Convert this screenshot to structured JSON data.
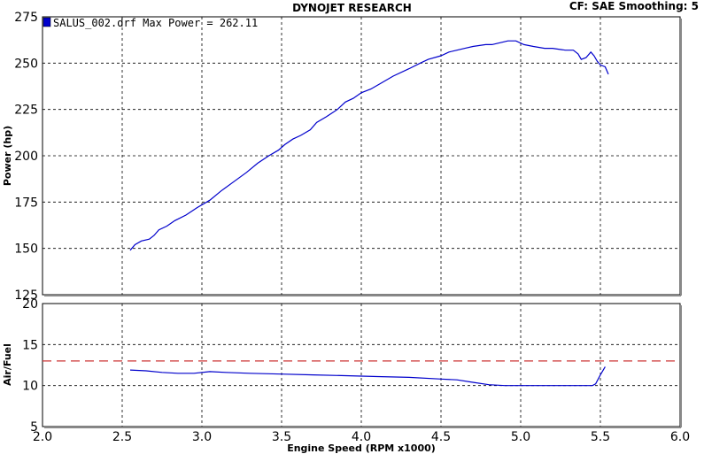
{
  "header": {
    "title": "DYNOJET RESEARCH",
    "cf_label": "CF: SAE  Smoothing: 5"
  },
  "colors": {
    "curve": "#0000cc",
    "target_line": "#cc3333",
    "grid": "#000000"
  },
  "chart_data": [
    {
      "type": "line",
      "title": "",
      "legend_text": "SALUS_002.drf Max Power = 262.11",
      "legend_position": "top-left",
      "xlabel": "",
      "ylabel": "Power (hp)",
      "xlim": [
        2.0,
        6.0
      ],
      "ylim": [
        125,
        275
      ],
      "yticks": [
        125,
        150,
        175,
        200,
        225,
        250,
        275
      ],
      "grid": true,
      "series": [
        {
          "x": [
            2.55,
            2.58,
            2.62,
            2.67,
            2.7,
            2.73,
            2.78,
            2.83,
            2.9,
            2.97,
            3.05,
            3.12,
            3.2,
            3.28,
            3.35,
            3.42,
            3.48,
            3.52,
            3.57,
            3.62,
            3.68,
            3.72,
            3.78,
            3.85,
            3.9,
            3.95,
            4.0,
            4.06,
            4.12,
            4.2,
            4.3,
            4.37,
            4.42,
            4.5,
            4.55,
            4.6,
            4.65,
            4.7,
            4.78,
            4.82,
            4.87,
            4.92,
            4.97,
            5.02,
            5.08,
            5.15,
            5.2,
            5.28,
            5.33,
            5.36,
            5.38,
            5.41,
            5.44,
            5.46,
            5.48,
            5.5,
            5.53,
            5.55
          ],
          "y": [
            149,
            152,
            154,
            155,
            157,
            160,
            162,
            165,
            168,
            172,
            176,
            181,
            186,
            191,
            196,
            200,
            203,
            206,
            209,
            211,
            214,
            218,
            221,
            225,
            229,
            231,
            234,
            236,
            239,
            243,
            247,
            250,
            252,
            254,
            256,
            257,
            258,
            259,
            260,
            260,
            261,
            262,
            262,
            260,
            259,
            258,
            258,
            257,
            257,
            255,
            252,
            253,
            256,
            254,
            251,
            249,
            248,
            244
          ]
        }
      ]
    },
    {
      "type": "line",
      "title": "",
      "xlabel": "Engine Speed (RPM x1000)",
      "ylabel": "Air/Fuel",
      "xlim": [
        2.0,
        6.0
      ],
      "ylim": [
        5,
        20
      ],
      "xticks": [
        2.0,
        2.5,
        3.0,
        3.5,
        4.0,
        4.5,
        5.0,
        5.5,
        6.0
      ],
      "yticks": [
        5,
        10,
        15,
        20
      ],
      "grid": true,
      "target_line_y": 13.0,
      "series": [
        {
          "x": [
            2.55,
            2.65,
            2.75,
            2.85,
            2.95,
            3.05,
            3.15,
            3.3,
            3.5,
            3.7,
            3.9,
            4.1,
            4.3,
            4.5,
            4.6,
            4.7,
            4.8,
            4.9,
            5.0,
            5.1,
            5.2,
            5.3,
            5.4,
            5.45,
            5.47,
            5.5,
            5.53
          ],
          "y": [
            11.9,
            11.8,
            11.6,
            11.5,
            11.5,
            11.7,
            11.6,
            11.5,
            11.4,
            11.3,
            11.2,
            11.1,
            11.0,
            10.8,
            10.7,
            10.4,
            10.1,
            10.0,
            10.0,
            10.0,
            10.0,
            10.0,
            10.0,
            10.0,
            10.2,
            11.3,
            12.3
          ]
        }
      ]
    }
  ]
}
